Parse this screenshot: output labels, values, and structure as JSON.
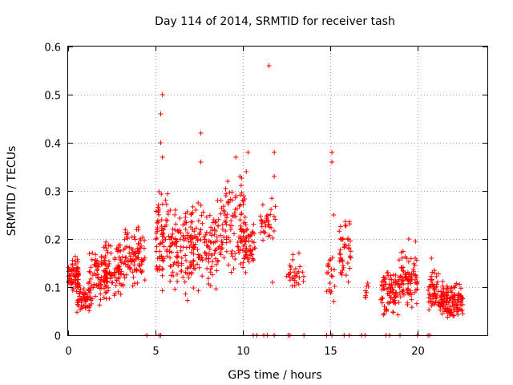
{
  "chart_data": {
    "type": "scatter",
    "title": "Day 114 of 2014, SRMTID for receiver tash",
    "xlabel": "GPS time / hours",
    "ylabel": "SRMTID / TECUs",
    "xlim": [
      0,
      24
    ],
    "ylim": [
      0,
      0.6
    ],
    "x_ticks": [
      0,
      5,
      10,
      15,
      20
    ],
    "x_tick_labels": [
      "0",
      "5",
      "10",
      "15",
      "20"
    ],
    "y_ticks": [
      0,
      0.1,
      0.2,
      0.3,
      0.4,
      0.5,
      0.6
    ],
    "y_tick_labels": [
      "0",
      "0.1",
      "0.2",
      "0.3",
      "0.4",
      "0.5",
      "0.6"
    ],
    "grid": true,
    "marker": "+",
    "color": "#ff0000",
    "series": [
      {
        "name": "SRMTID",
        "clusters": [
          {
            "x_range": [
              0.0,
              0.6
            ],
            "y_range": [
              0.08,
              0.17
            ],
            "count": 70
          },
          {
            "x_range": [
              0.5,
              1.3
            ],
            "y_range": [
              0.03,
              0.12
            ],
            "count": 60
          },
          {
            "x_range": [
              1.2,
              2.2
            ],
            "y_range": [
              0.04,
              0.2
            ],
            "count": 80
          },
          {
            "x_range": [
              2.0,
              3.2
            ],
            "y_range": [
              0.06,
              0.22
            ],
            "count": 90
          },
          {
            "x_range": [
              3.2,
              4.4
            ],
            "y_range": [
              0.08,
              0.25
            ],
            "count": 90
          },
          {
            "x_range": [
              5.0,
              5.8
            ],
            "y_range": [
              0.06,
              0.34
            ],
            "count": 70
          },
          {
            "x_range": [
              5.8,
              7.2
            ],
            "y_range": [
              0.06,
              0.3
            ],
            "count": 110
          },
          {
            "x_range": [
              7.0,
              8.6
            ],
            "y_range": [
              0.07,
              0.31
            ],
            "count": 110
          },
          {
            "x_range": [
              8.6,
              10.2
            ],
            "y_range": [
              0.1,
              0.35
            ],
            "count": 110
          },
          {
            "x_range": [
              10.0,
              10.7
            ],
            "y_range": [
              0.12,
              0.25
            ],
            "count": 50
          },
          {
            "x_range": [
              11.0,
              11.9
            ],
            "y_range": [
              0.17,
              0.29
            ],
            "count": 35
          },
          {
            "x_range": [
              12.5,
              13.5
            ],
            "y_range": [
              0.07,
              0.2
            ],
            "count": 30
          },
          {
            "x_range": [
              14.8,
              15.3
            ],
            "y_range": [
              0.05,
              0.2
            ],
            "count": 20
          },
          {
            "x_range": [
              15.5,
              16.2
            ],
            "y_range": [
              0.08,
              0.29
            ],
            "count": 45
          },
          {
            "x_range": [
              17.0,
              17.2
            ],
            "y_range": [
              0.06,
              0.14
            ],
            "count": 8
          },
          {
            "x_range": [
              17.9,
              18.9
            ],
            "y_range": [
              0.03,
              0.15
            ],
            "count": 80
          },
          {
            "x_range": [
              18.9,
              20.0
            ],
            "y_range": [
              0.04,
              0.2
            ],
            "count": 90
          },
          {
            "x_range": [
              20.6,
              21.3
            ],
            "y_range": [
              0.03,
              0.15
            ],
            "count": 55
          },
          {
            "x_range": [
              21.3,
              22.6
            ],
            "y_range": [
              0.02,
              0.12
            ],
            "count": 130
          }
        ],
        "highlights": [
          {
            "x": 11.5,
            "y": 0.56
          },
          {
            "x": 5.4,
            "y": 0.5
          },
          {
            "x": 5.3,
            "y": 0.46
          },
          {
            "x": 5.3,
            "y": 0.4
          },
          {
            "x": 5.4,
            "y": 0.37
          },
          {
            "x": 7.6,
            "y": 0.42
          },
          {
            "x": 7.6,
            "y": 0.36
          },
          {
            "x": 10.3,
            "y": 0.38
          },
          {
            "x": 9.6,
            "y": 0.37
          },
          {
            "x": 10.2,
            "y": 0.34
          },
          {
            "x": 11.8,
            "y": 0.38
          },
          {
            "x": 11.8,
            "y": 0.33
          },
          {
            "x": 15.1,
            "y": 0.38
          },
          {
            "x": 15.1,
            "y": 0.36
          },
          {
            "x": 15.2,
            "y": 0.25
          },
          {
            "x": 11.7,
            "y": 0.11
          },
          {
            "x": 19.5,
            "y": 0.2
          },
          {
            "x": 20.8,
            "y": 0.16
          }
        ],
        "zero_values_x": [
          4.5,
          5.2,
          5.3,
          10.6,
          10.8,
          11.2,
          11.4,
          11.8,
          12.6,
          12.7,
          13.5,
          14.8,
          15.1,
          15.8,
          16.1,
          16.8,
          17.0,
          18.2,
          18.4,
          19.0,
          20.0,
          20.6,
          20.7
        ]
      }
    ]
  }
}
